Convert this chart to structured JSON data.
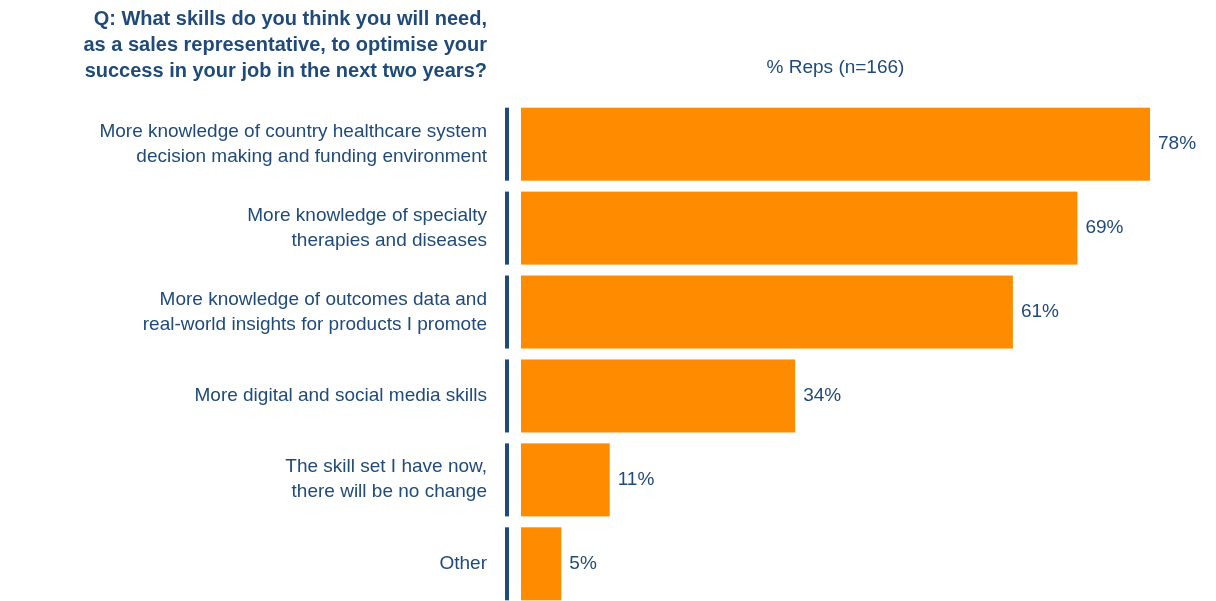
{
  "chart_data": {
    "type": "bar",
    "orientation": "horizontal",
    "title": "Q: What skills do you think you will need,\nas a sales representative, to optimise your\nsuccess in your job in the next two years?",
    "xlabel": "% Reps (n=166)",
    "categories": [
      "More knowledge of country healthcare system\ndecision making and funding environment",
      "More knowledge of specialty\ntherapies and diseases",
      "More knowledge of outcomes data and\nreal-world insights for products I promote",
      "More digital and social media skills",
      "The skill set I have now,\nthere will be no change",
      "Other"
    ],
    "values": [
      78,
      69,
      61,
      34,
      11,
      5
    ],
    "value_labels": [
      "78%",
      "69%",
      "61%",
      "34%",
      "11%",
      "5%"
    ],
    "color": "#ff8c00"
  }
}
